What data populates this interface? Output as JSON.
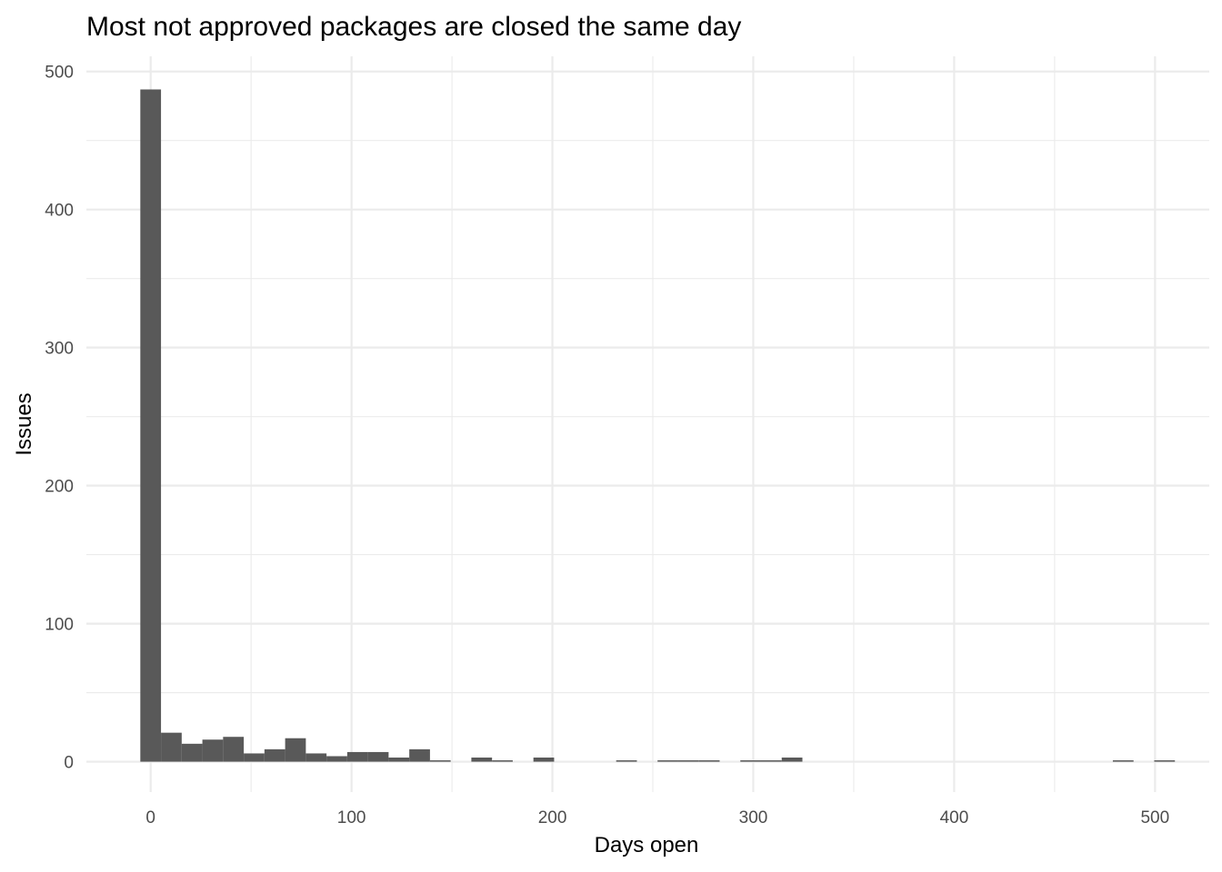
{
  "chart_data": {
    "type": "bar",
    "title": "Most not approved packages are closed the same day",
    "xlabel": "Days open",
    "ylabel": "Issues",
    "xlim": [
      -32,
      527
    ],
    "ylim": [
      -22,
      511
    ],
    "x_ticks": [
      0,
      100,
      200,
      300,
      400,
      500
    ],
    "y_ticks": [
      0,
      100,
      200,
      300,
      400,
      500
    ],
    "bar_color": "#595959",
    "grid": true,
    "bin_width": 10.3,
    "bins": [
      {
        "x0": -5.15,
        "x1": 5.15,
        "y": 487
      },
      {
        "x0": 5.15,
        "x1": 15.45,
        "y": 21
      },
      {
        "x0": 15.45,
        "x1": 25.75,
        "y": 13
      },
      {
        "x0": 25.75,
        "x1": 36.05,
        "y": 16
      },
      {
        "x0": 36.05,
        "x1": 46.35,
        "y": 18
      },
      {
        "x0": 46.35,
        "x1": 56.65,
        "y": 6
      },
      {
        "x0": 56.65,
        "x1": 66.95,
        "y": 9
      },
      {
        "x0": 66.95,
        "x1": 77.25,
        "y": 17
      },
      {
        "x0": 77.25,
        "x1": 87.55,
        "y": 6
      },
      {
        "x0": 87.55,
        "x1": 97.85,
        "y": 4
      },
      {
        "x0": 97.85,
        "x1": 108.15,
        "y": 7
      },
      {
        "x0": 108.15,
        "x1": 118.45,
        "y": 7
      },
      {
        "x0": 118.45,
        "x1": 128.75,
        "y": 3
      },
      {
        "x0": 128.75,
        "x1": 139.05,
        "y": 9
      },
      {
        "x0": 139.05,
        "x1": 149.35,
        "y": 1
      },
      {
        "x0": 159.65,
        "x1": 169.95,
        "y": 3
      },
      {
        "x0": 169.95,
        "x1": 180.25,
        "y": 1
      },
      {
        "x0": 190.55,
        "x1": 200.85,
        "y": 3
      },
      {
        "x0": 231.75,
        "x1": 242.05,
        "y": 1
      },
      {
        "x0": 252.35,
        "x1": 262.65,
        "y": 1
      },
      {
        "x0": 262.65,
        "x1": 272.95,
        "y": 1
      },
      {
        "x0": 272.95,
        "x1": 283.25,
        "y": 1
      },
      {
        "x0": 293.55,
        "x1": 303.85,
        "y": 1
      },
      {
        "x0": 303.85,
        "x1": 314.15,
        "y": 1
      },
      {
        "x0": 314.15,
        "x1": 324.45,
        "y": 3
      },
      {
        "x0": 479.0,
        "x1": 489.3,
        "y": 1
      },
      {
        "x0": 499.6,
        "x1": 509.9,
        "y": 1
      }
    ]
  }
}
